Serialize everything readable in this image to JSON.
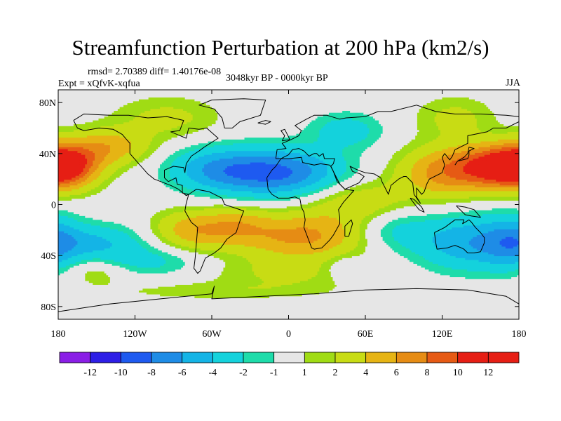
{
  "chart_data": {
    "type": "heatmap",
    "title": "Streamfunction Perturbation at 200 hPa (km2/s)",
    "stats_text": "rmsd= 2.70389 diff= 1.40176e-08",
    "experiment_text": "Expt = xQfvK-xqfua",
    "period_text": "3048kyr BP - 0000kyr BP",
    "season_text": "JJA",
    "projection": "cylindrical equidistant",
    "xlim": [
      -180,
      180
    ],
    "ylim": [
      -90,
      90
    ],
    "lat_ticks": [
      {
        "value": 80,
        "label": "80N"
      },
      {
        "value": 40,
        "label": "40N"
      },
      {
        "value": 0,
        "label": "0"
      },
      {
        "value": -40,
        "label": "40S"
      },
      {
        "value": -80,
        "label": "80S"
      }
    ],
    "lon_ticks": [
      {
        "value": -180,
        "label": "180"
      },
      {
        "value": -120,
        "label": "120W"
      },
      {
        "value": -60,
        "label": "60W"
      },
      {
        "value": 0,
        "label": "0"
      },
      {
        "value": 60,
        "label": "60E"
      },
      {
        "value": 120,
        "label": "120E"
      },
      {
        "value": 180,
        "label": "180"
      }
    ],
    "contour_levels": [
      -12,
      -10,
      -8,
      -6,
      -4,
      -2,
      -1,
      1,
      2,
      4,
      6,
      8,
      10,
      12
    ],
    "level_labels": [
      "-12",
      "-10",
      "-8",
      "-6",
      "-4",
      "-2",
      "-1",
      "1",
      "2",
      "4",
      "6",
      "8",
      "10",
      "12"
    ],
    "colors": [
      "#8a1ee6",
      "#2d1ee6",
      "#1e5af0",
      "#1e8ce6",
      "#14b4e6",
      "#14d2dc",
      "#1edcaa",
      "#e6e6e6",
      "#a0dc14",
      "#c8dc14",
      "#e6b414",
      "#e68c14",
      "#e65a14",
      "#e61e14",
      "#e61e14"
    ],
    "field_components": [
      {
        "lon": -10,
        "lat": 25,
        "amp": -8.5,
        "sx": 35,
        "sy": 13
      },
      {
        "lon": -60,
        "lat": 28,
        "amp": -4,
        "sx": 25,
        "sy": 12
      },
      {
        "lon": 45,
        "lat": 58,
        "amp": -3,
        "sx": 20,
        "sy": 10
      },
      {
        "lon": -150,
        "lat": -30,
        "amp": -4,
        "sx": 28,
        "sy": 10
      },
      {
        "lon": -110,
        "lat": -45,
        "amp": -2.5,
        "sx": 30,
        "sy": 8
      },
      {
        "lon": 140,
        "lat": -30,
        "amp": -5.5,
        "sx": 28,
        "sy": 15
      },
      {
        "lon": 80,
        "lat": -20,
        "amp": -3,
        "sx": 22,
        "sy": 12
      },
      {
        "lon": 45,
        "lat": -50,
        "amp": -2,
        "sx": 12,
        "sy": 7
      },
      {
        "lon": 175,
        "lat": -30,
        "amp": -4,
        "sx": 15,
        "sy": 15
      },
      {
        "lon": 165,
        "lat": 30,
        "amp": 10,
        "sx": 25,
        "sy": 12
      },
      {
        "lon": 120,
        "lat": 25,
        "amp": 6,
        "sx": 25,
        "sy": 14
      },
      {
        "lon": -175,
        "lat": 30,
        "amp": 8,
        "sx": 18,
        "sy": 12
      },
      {
        "lon": -140,
        "lat": 45,
        "amp": 5,
        "sx": 22,
        "sy": 10
      },
      {
        "lon": 10,
        "lat": -25,
        "amp": 6.5,
        "sx": 38,
        "sy": 13
      },
      {
        "lon": -75,
        "lat": -20,
        "amp": 5,
        "sx": 22,
        "sy": 11
      },
      {
        "lon": -40,
        "lat": -15,
        "amp": 3,
        "sx": 18,
        "sy": 10
      },
      {
        "lon": 55,
        "lat": 2,
        "amp": 3.5,
        "sx": 28,
        "sy": 12
      },
      {
        "lon": -95,
        "lat": 68,
        "amp": 2.5,
        "sx": 30,
        "sy": 12
      },
      {
        "lon": 130,
        "lat": 68,
        "amp": 2.5,
        "sx": 22,
        "sy": 12
      },
      {
        "lon": -150,
        "lat": -52,
        "amp": 2.2,
        "sx": 18,
        "sy": 8
      },
      {
        "lon": 0,
        "lat": -55,
        "amp": 2,
        "sx": 45,
        "sy": 9
      },
      {
        "lon": -60,
        "lat": -68,
        "amp": 1.5,
        "sx": 60,
        "sy": 5
      }
    ],
    "coastlines": [
      [
        [
          -168,
          66
        ],
        [
          -160,
          71
        ],
        [
          -140,
          70
        ],
        [
          -125,
          70
        ],
        [
          -110,
          68
        ],
        [
          -95,
          69
        ],
        [
          -82,
          66
        ],
        [
          -85,
          58
        ],
        [
          -92,
          57
        ],
        [
          -80,
          52
        ],
        [
          -78,
          60
        ],
        [
          -70,
          59
        ],
        [
          -64,
          60
        ],
        [
          -55,
          52
        ],
        [
          -66,
          45
        ],
        [
          -70,
          42
        ],
        [
          -76,
          38
        ],
        [
          -80,
          32
        ],
        [
          -81,
          25
        ],
        [
          -82,
          29
        ],
        [
          -90,
          30
        ],
        [
          -97,
          27
        ],
        [
          -97,
          21
        ],
        [
          -94,
          18
        ],
        [
          -88,
          21
        ],
        [
          -87,
          16
        ],
        [
          -83,
          15
        ],
        [
          -83,
          9
        ],
        [
          -78,
          8
        ],
        [
          -80,
          7
        ],
        [
          -86,
          12
        ],
        [
          -92,
          15
        ],
        [
          -105,
          20
        ],
        [
          -110,
          24
        ],
        [
          -117,
          32
        ],
        [
          -124,
          40
        ],
        [
          -124,
          48
        ],
        [
          -130,
          55
        ],
        [
          -137,
          59
        ],
        [
          -148,
          60
        ],
        [
          -160,
          58
        ],
        [
          -165,
          60
        ],
        [
          -168,
          66
        ]
      ],
      [
        [
          -78,
          8
        ],
        [
          -72,
          12
        ],
        [
          -62,
          10
        ],
        [
          -52,
          5
        ],
        [
          -50,
          0
        ],
        [
          -44,
          -2
        ],
        [
          -35,
          -5
        ],
        [
          -38,
          -13
        ],
        [
          -41,
          -22
        ],
        [
          -48,
          -27
        ],
        [
          -53,
          -34
        ],
        [
          -58,
          -38
        ],
        [
          -65,
          -42
        ],
        [
          -67,
          -47
        ],
        [
          -69,
          -52
        ],
        [
          -71,
          -54
        ],
        [
          -74,
          -50
        ],
        [
          -73,
          -42
        ],
        [
          -72,
          -30
        ],
        [
          -71,
          -18
        ],
        [
          -76,
          -14
        ],
        [
          -81,
          -5
        ],
        [
          -80,
          1
        ],
        [
          -78,
          8
        ]
      ],
      [
        [
          -50,
          60
        ],
        [
          -44,
          60
        ],
        [
          -38,
          65
        ],
        [
          -22,
          70
        ],
        [
          -20,
          76
        ],
        [
          -18,
          82
        ],
        [
          -35,
          83
        ],
        [
          -60,
          82
        ],
        [
          -70,
          78
        ],
        [
          -58,
          75
        ],
        [
          -52,
          68
        ],
        [
          -50,
          60
        ]
      ],
      [
        [
          -10,
          36
        ],
        [
          -9,
          43
        ],
        [
          -2,
          44
        ],
        [
          -5,
          48
        ],
        [
          2,
          51
        ],
        [
          8,
          54
        ],
        [
          10,
          58
        ],
        [
          5,
          62
        ],
        [
          14,
          67
        ],
        [
          20,
          70
        ],
        [
          30,
          70
        ],
        [
          40,
          67
        ],
        [
          45,
          68
        ],
        [
          60,
          69
        ],
        [
          70,
          73
        ],
        [
          80,
          73
        ],
        [
          100,
          78
        ],
        [
          115,
          73
        ],
        [
          130,
          71
        ],
        [
          150,
          71
        ],
        [
          170,
          70
        ],
        [
          180,
          69
        ],
        [
          180,
          65
        ],
        [
          170,
          60
        ],
        [
          160,
          60
        ],
        [
          155,
          57
        ],
        [
          140,
          54
        ],
        [
          140,
          48
        ],
        [
          130,
          43
        ],
        [
          128,
          38
        ],
        [
          126,
          35
        ],
        [
          122,
          40
        ],
        [
          120,
          37
        ],
        [
          122,
          31
        ],
        [
          120,
          25
        ],
        [
          110,
          20
        ],
        [
          108,
          16
        ],
        [
          106,
          10
        ],
        [
          104,
          8
        ],
        [
          100,
          13
        ],
        [
          100,
          6
        ],
        [
          103,
          1
        ],
        [
          98,
          8
        ],
        [
          97,
          17
        ],
        [
          92,
          22
        ],
        [
          90,
          22
        ],
        [
          86,
          20
        ],
        [
          80,
          15
        ],
        [
          78,
          8
        ],
        [
          73,
          18
        ],
        [
          72,
          21
        ],
        [
          67,
          24
        ],
        [
          60,
          25
        ],
        [
          57,
          26
        ],
        [
          52,
          28
        ],
        [
          48,
          30
        ],
        [
          50,
          26
        ],
        [
          56,
          24
        ],
        [
          59,
          22
        ],
        [
          55,
          17
        ],
        [
          44,
          12
        ],
        [
          43,
          13
        ],
        [
          40,
          16
        ],
        [
          35,
          26
        ],
        [
          33,
          30
        ],
        [
          35,
          32
        ],
        [
          36,
          36
        ],
        [
          28,
          36
        ],
        [
          27,
          40
        ],
        [
          24,
          38
        ],
        [
          22,
          40
        ],
        [
          20,
          40
        ],
        [
          16,
          38
        ],
        [
          12,
          42
        ],
        [
          8,
          44
        ],
        [
          3,
          43
        ],
        [
          0,
          39
        ],
        [
          -6,
          36
        ],
        [
          -10,
          36
        ]
      ],
      [
        [
          -17,
          21
        ],
        [
          -16,
          12
        ],
        [
          -13,
          8
        ],
        [
          -8,
          5
        ],
        [
          0,
          5
        ],
        [
          5,
          6
        ],
        [
          9,
          4
        ],
        [
          10,
          -2
        ],
        [
          12,
          -6
        ],
        [
          13,
          -12
        ],
        [
          12,
          -18
        ],
        [
          15,
          -26
        ],
        [
          18,
          -34
        ],
        [
          20,
          -35
        ],
        [
          26,
          -34
        ],
        [
          32,
          -28
        ],
        [
          35,
          -24
        ],
        [
          40,
          -15
        ],
        [
          40,
          -10
        ],
        [
          39,
          -4
        ],
        [
          43,
          2
        ],
        [
          51,
          11
        ],
        [
          44,
          12
        ],
        [
          43,
          13
        ],
        [
          38,
          18
        ],
        [
          35,
          26
        ],
        [
          33,
          30
        ],
        [
          32,
          31
        ],
        [
          25,
          32
        ],
        [
          20,
          31
        ],
        [
          11,
          33
        ],
        [
          10,
          37
        ],
        [
          0,
          36
        ],
        [
          -6,
          36
        ],
        [
          -10,
          30
        ],
        [
          -13,
          27
        ],
        [
          -17,
          21
        ]
      ],
      [
        [
          114,
          -22
        ],
        [
          122,
          -18
        ],
        [
          130,
          -12
        ],
        [
          137,
          -12
        ],
        [
          136,
          -15
        ],
        [
          141,
          -12
        ],
        [
          143,
          -14
        ],
        [
          146,
          -18
        ],
        [
          150,
          -22
        ],
        [
          153,
          -26
        ],
        [
          153,
          -30
        ],
        [
          150,
          -37
        ],
        [
          145,
          -38
        ],
        [
          140,
          -38
        ],
        [
          137,
          -35
        ],
        [
          135,
          -34
        ],
        [
          130,
          -32
        ],
        [
          124,
          -34
        ],
        [
          116,
          -35
        ],
        [
          115,
          -30
        ],
        [
          114,
          -22
        ]
      ],
      [
        [
          -5,
          50
        ],
        [
          -3,
          54
        ],
        [
          -6,
          58
        ],
        [
          -3,
          59
        ],
        [
          0,
          53
        ],
        [
          1,
          51
        ],
        [
          -5,
          50
        ]
      ],
      [
        [
          130,
          31
        ],
        [
          132,
          34
        ],
        [
          136,
          35
        ],
        [
          140,
          36
        ],
        [
          141,
          39
        ],
        [
          141,
          42
        ],
        [
          145,
          44
        ],
        [
          141,
          45
        ],
        [
          140,
          40
        ],
        [
          137,
          37
        ],
        [
          132,
          34
        ],
        [
          130,
          31
        ]
      ],
      [
        [
          44,
          -25
        ],
        [
          47,
          -25
        ],
        [
          50,
          -15
        ],
        [
          49,
          -12
        ],
        [
          44,
          -17
        ],
        [
          44,
          -25
        ]
      ],
      [
        [
          95,
          5
        ],
        [
          98,
          4
        ],
        [
          104,
          -2
        ],
        [
          106,
          -6
        ],
        [
          102,
          -4
        ],
        [
          98,
          1
        ],
        [
          95,
          5
        ]
      ],
      [
        [
          131,
          -1
        ],
        [
          138,
          -2
        ],
        [
          145,
          -4
        ],
        [
          150,
          -10
        ],
        [
          143,
          -9
        ],
        [
          138,
          -8
        ],
        [
          131,
          -1
        ]
      ],
      [
        [
          -24,
          64
        ],
        [
          -18,
          66
        ],
        [
          -14,
          65
        ],
        [
          -18,
          63
        ],
        [
          -24,
          64
        ]
      ],
      [
        [
          -180,
          -84
        ],
        [
          -140,
          -78
        ],
        [
          -100,
          -74
        ],
        [
          -60,
          -70
        ],
        [
          -58,
          -64
        ],
        [
          -60,
          -74
        ],
        [
          -20,
          -72
        ],
        [
          20,
          -70
        ],
        [
          60,
          -67
        ],
        [
          100,
          -66
        ],
        [
          140,
          -67
        ],
        [
          170,
          -72
        ],
        [
          180,
          -78
        ]
      ]
    ]
  }
}
